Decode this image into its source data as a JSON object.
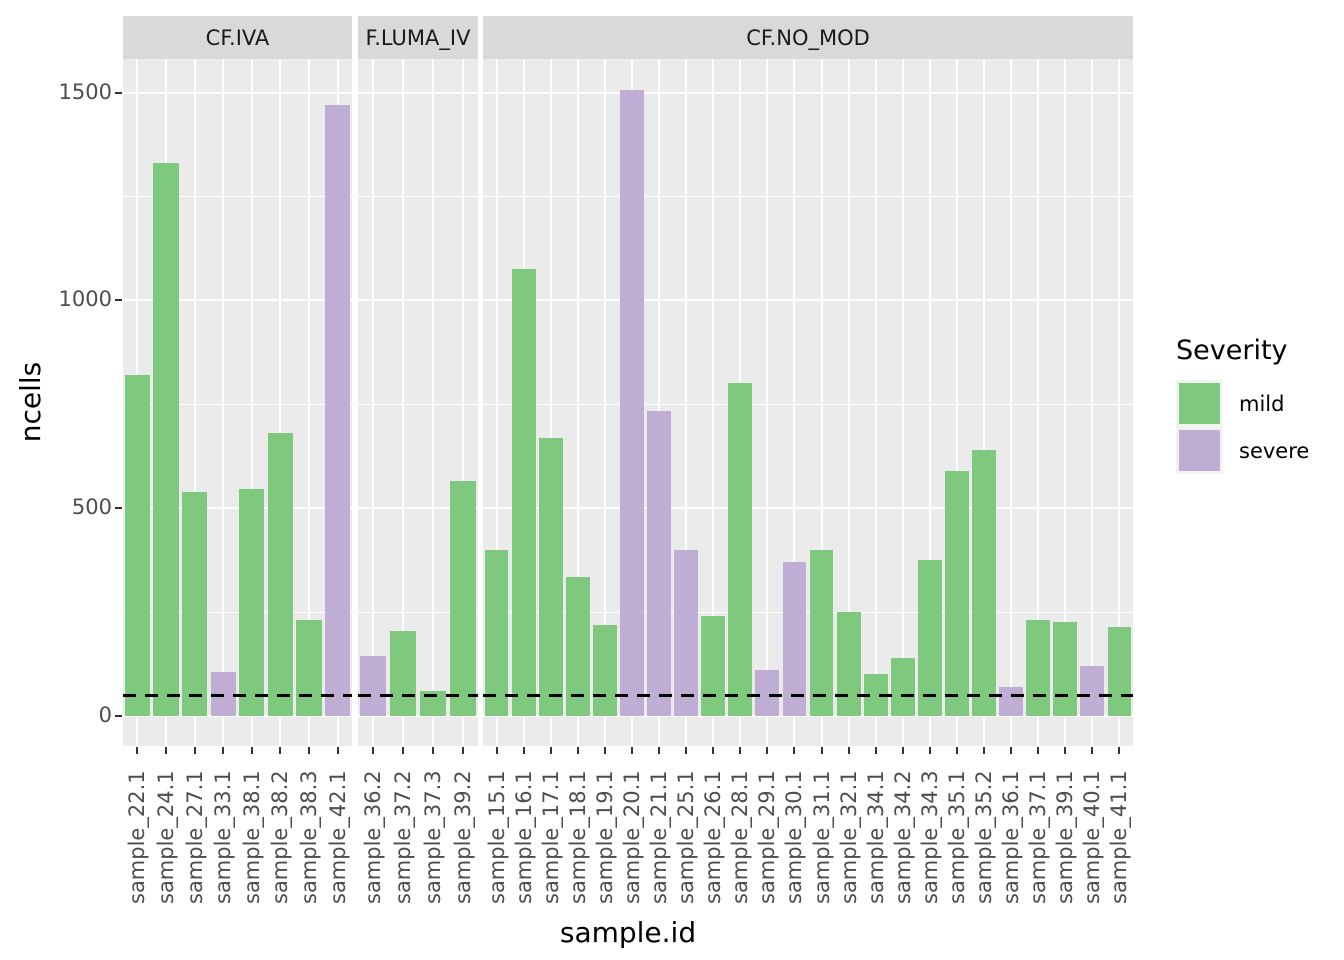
{
  "chart_data": {
    "type": "bar",
    "title": "",
    "xlabel": "sample.id",
    "ylabel": "ncells",
    "y_ticks": [
      0,
      500,
      1000,
      1500
    ],
    "y_minor_ticks": [
      250,
      750,
      1250
    ],
    "ylim": [
      0,
      1580
    ],
    "grid": "white major+minor horizontal lines and vertical category lines on grey panel",
    "legend_position": "right",
    "reference_line": {
      "value": 50,
      "style": "dashed",
      "color": "#000000"
    },
    "legend": {
      "title": "Severity",
      "entries": [
        {
          "label": "mild",
          "color": "#7FC97F"
        },
        {
          "label": "severe",
          "color": "#BEAED4"
        }
      ]
    },
    "facets": [
      {
        "label": "CF.IVA",
        "bars": [
          {
            "id": "sample_22.1",
            "value": 820,
            "severity": "mild"
          },
          {
            "id": "sample_24.1",
            "value": 1330,
            "severity": "mild"
          },
          {
            "id": "sample_27.1",
            "value": 540,
            "severity": "mild"
          },
          {
            "id": "sample_33.1",
            "value": 105,
            "severity": "severe"
          },
          {
            "id": "sample_38.1",
            "value": 545,
            "severity": "mild"
          },
          {
            "id": "sample_38.2",
            "value": 680,
            "severity": "mild"
          },
          {
            "id": "sample_38.3",
            "value": 230,
            "severity": "mild"
          },
          {
            "id": "sample_42.1",
            "value": 1470,
            "severity": "severe"
          }
        ]
      },
      {
        "label": "F.LUMA_IV",
        "bars": [
          {
            "id": "sample_36.2",
            "value": 145,
            "severity": "severe"
          },
          {
            "id": "sample_37.2",
            "value": 205,
            "severity": "mild"
          },
          {
            "id": "sample_37.3",
            "value": 60,
            "severity": "mild"
          },
          {
            "id": "sample_39.2",
            "value": 565,
            "severity": "mild"
          }
        ]
      },
      {
        "label": "CF.NO_MOD",
        "bars": [
          {
            "id": "sample_15.1",
            "value": 400,
            "severity": "mild"
          },
          {
            "id": "sample_16.1",
            "value": 1075,
            "severity": "mild"
          },
          {
            "id": "sample_17.1",
            "value": 670,
            "severity": "mild"
          },
          {
            "id": "sample_18.1",
            "value": 335,
            "severity": "mild"
          },
          {
            "id": "sample_19.1",
            "value": 220,
            "severity": "mild"
          },
          {
            "id": "sample_20.1",
            "value": 1505,
            "severity": "severe"
          },
          {
            "id": "sample_21.1",
            "value": 735,
            "severity": "severe"
          },
          {
            "id": "sample_25.1",
            "value": 400,
            "severity": "severe"
          },
          {
            "id": "sample_26.1",
            "value": 240,
            "severity": "mild"
          },
          {
            "id": "sample_28.1",
            "value": 800,
            "severity": "mild"
          },
          {
            "id": "sample_29.1",
            "value": 110,
            "severity": "severe"
          },
          {
            "id": "sample_30.1",
            "value": 370,
            "severity": "severe"
          },
          {
            "id": "sample_31.1",
            "value": 400,
            "severity": "mild"
          },
          {
            "id": "sample_32.1",
            "value": 250,
            "severity": "mild"
          },
          {
            "id": "sample_34.1",
            "value": 100,
            "severity": "mild"
          },
          {
            "id": "sample_34.2",
            "value": 140,
            "severity": "mild"
          },
          {
            "id": "sample_34.3",
            "value": 375,
            "severity": "mild"
          },
          {
            "id": "sample_35.1",
            "value": 590,
            "severity": "mild"
          },
          {
            "id": "sample_35.2",
            "value": 640,
            "severity": "mild"
          },
          {
            "id": "sample_36.1",
            "value": 70,
            "severity": "severe"
          },
          {
            "id": "sample_37.1",
            "value": 230,
            "severity": "mild"
          },
          {
            "id": "sample_39.1",
            "value": 225,
            "severity": "mild"
          },
          {
            "id": "sample_40.1",
            "value": 120,
            "severity": "severe"
          },
          {
            "id": "sample_41.1",
            "value": 215,
            "severity": "mild"
          }
        ]
      }
    ],
    "colors": {
      "mild": "#7FC97F",
      "severe": "#BEAED4",
      "panel_background": "#EBEBEB",
      "strip_background": "#D9D9D9",
      "gridline": "#FFFFFF",
      "tick_text": "#4D4D4D",
      "axis_title_text": "#000000"
    }
  }
}
